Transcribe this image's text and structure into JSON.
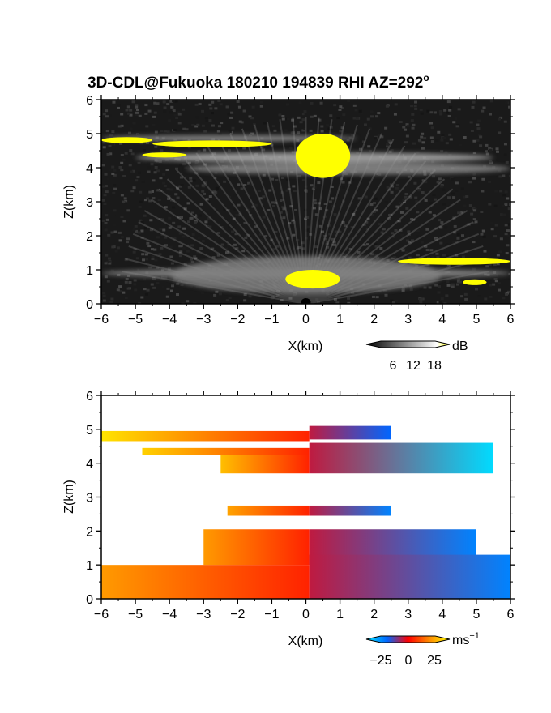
{
  "figure": {
    "title": "3D-CDL@Fukuoka 180210 194839 RHI AZ=292",
    "title_degree": "o"
  },
  "chart_data": [
    {
      "type": "heatmap",
      "panel": "reflectivity",
      "xlabel": "X(km)",
      "ylabel": "Z(km)",
      "xlim": [
        -6,
        6
      ],
      "ylim": [
        0,
        6
      ],
      "xticks": [
        -6,
        -5,
        -4,
        -3,
        -2,
        -1,
        0,
        1,
        2,
        3,
        4,
        5,
        6
      ],
      "yticks": [
        0,
        1,
        2,
        3,
        4,
        5,
        6
      ],
      "background_color": "#1a1a1a",
      "colorbar": {
        "unit": "dB",
        "ticks": [
          6,
          12,
          18
        ],
        "colors": [
          "#000000",
          "#ffffff",
          "#ffff00"
        ]
      },
      "bands": [
        {
          "x": [
            -6.0,
            1.5
          ],
          "z": [
            4.78,
            4.95
          ],
          "value": 10
        },
        {
          "x": [
            -5.0,
            5.5
          ],
          "z": [
            4.15,
            4.45
          ],
          "value": 12
        },
        {
          "x": [
            -3.5,
            6.0
          ],
          "z": [
            3.8,
            4.15
          ],
          "value": 9
        },
        {
          "x": [
            -6.0,
            6.0
          ],
          "z": [
            0.75,
            1.05
          ],
          "value": 9
        },
        {
          "x": [
            -4.0,
            4.0
          ],
          "z": [
            0.3,
            1.4
          ],
          "value": 8
        }
      ],
      "high_echo_regions": [
        {
          "x": [
            -6.0,
            -4.5
          ],
          "z": [
            4.72,
            4.9
          ],
          "value": 20
        },
        {
          "x": [
            -4.5,
            -1.0
          ],
          "z": [
            4.6,
            4.8
          ],
          "value": 20
        },
        {
          "x": [
            -4.8,
            -3.5
          ],
          "z": [
            4.3,
            4.45
          ],
          "value": 20
        },
        {
          "x": [
            -0.3,
            1.3
          ],
          "z": [
            3.7,
            5.0
          ],
          "value": 20
        },
        {
          "x": [
            -0.6,
            1.0
          ],
          "z": [
            0.45,
            1.0
          ],
          "value": 20
        },
        {
          "x": [
            2.7,
            6.0
          ],
          "z": [
            1.15,
            1.35
          ],
          "value": 20
        },
        {
          "x": [
            4.6,
            5.3
          ],
          "z": [
            0.55,
            0.72
          ],
          "value": 20
        }
      ]
    },
    {
      "type": "heatmap",
      "panel": "doppler_velocity",
      "xlabel": "X(km)",
      "ylabel": "Z(km)",
      "xlim": [
        -6,
        6
      ],
      "ylim": [
        0,
        6
      ],
      "xticks": [
        -6,
        -5,
        -4,
        -3,
        -2,
        -1,
        0,
        1,
        2,
        3,
        4,
        5,
        6
      ],
      "yticks": [
        0,
        1,
        2,
        3,
        4,
        5,
        6
      ],
      "colorbar": {
        "unit": "ms",
        "unit_exp": "−1",
        "ticks": [
          "−25",
          "0",
          "25"
        ],
        "ticks_value": [
          -25,
          0,
          25
        ],
        "colors": [
          "#00e5ff",
          "#0033ff",
          "#ff0000",
          "#ff9900",
          "#ffff00"
        ]
      },
      "regions": [
        {
          "x": [
            -6.0,
            0.1
          ],
          "z": [
            4.65,
            4.95
          ],
          "velocity_edge": 22,
          "velocity_center": 3
        },
        {
          "x": [
            -4.8,
            0.1
          ],
          "z": [
            4.25,
            4.45
          ],
          "velocity_edge": 20,
          "velocity_center": 3
        },
        {
          "x": [
            -2.5,
            0.1
          ],
          "z": [
            3.7,
            4.25
          ],
          "velocity_edge": 18,
          "velocity_center": 3
        },
        {
          "x": [
            0.1,
            2.5
          ],
          "z": [
            4.7,
            5.1
          ],
          "velocity_edge": -12,
          "velocity_center": -3
        },
        {
          "x": [
            0.1,
            5.5
          ],
          "z": [
            3.7,
            4.6
          ],
          "velocity_edge": -24,
          "velocity_center": -3
        },
        {
          "x": [
            -2.3,
            0.1
          ],
          "z": [
            2.45,
            2.75
          ],
          "velocity_edge": 15,
          "velocity_center": 3
        },
        {
          "x": [
            0.1,
            2.5
          ],
          "z": [
            2.45,
            2.75
          ],
          "velocity_edge": -15,
          "velocity_center": -3
        },
        {
          "x": [
            -3.0,
            0.1
          ],
          "z": [
            1.0,
            2.05
          ],
          "velocity_edge": 14,
          "velocity_center": 3
        },
        {
          "x": [
            0.1,
            5.0
          ],
          "z": [
            1.0,
            2.05
          ],
          "velocity_edge": -15,
          "velocity_center": -3
        },
        {
          "x": [
            -6.0,
            0.1
          ],
          "z": [
            0.0,
            1.0
          ],
          "velocity_edge": 14,
          "velocity_center": 3
        },
        {
          "x": [
            0.1,
            6.0
          ],
          "z": [
            0.0,
            1.3
          ],
          "velocity_edge": -15,
          "velocity_center": -3
        }
      ]
    }
  ]
}
